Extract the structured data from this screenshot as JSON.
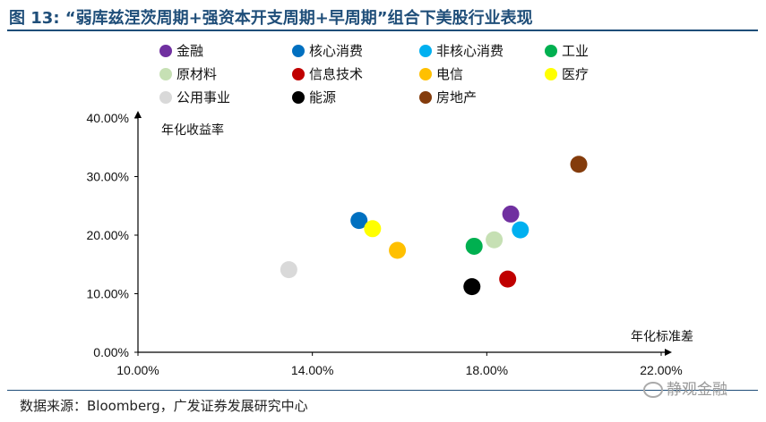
{
  "header": {
    "title": "图 13: “弱库兹涅茨周期+强资本开支周期+早周期”组合下美股行业表现"
  },
  "footer": {
    "source": "数据来源：Bloomberg，广发证券发展研究中心",
    "watermark": "静观金融"
  },
  "colors": {
    "title": "#1f4e79",
    "axis": "#000000"
  },
  "chart_data": {
    "type": "scatter",
    "title": "",
    "xlabel": "年化标准差",
    "ylabel": "年化收益率",
    "xlim": [
      0.1,
      0.22
    ],
    "ylim": [
      0.0,
      0.4
    ],
    "x_ticks": [
      "10.00%",
      "14.00%",
      "18.00%",
      "22.00%"
    ],
    "x_tick_values": [
      0.1,
      0.14,
      0.18,
      0.22
    ],
    "y_ticks": [
      "0.00%",
      "10.00%",
      "20.00%",
      "30.00%",
      "40.00%"
    ],
    "y_tick_values": [
      0.0,
      0.1,
      0.2,
      0.3,
      0.4
    ],
    "grid": false,
    "legend_position": "top",
    "series": [
      {
        "name": "金融",
        "color": "#7030a0",
        "x": 0.1855,
        "y": 0.236
      },
      {
        "name": "核心消费",
        "color": "#0070c0",
        "x": 0.1507,
        "y": 0.225
      },
      {
        "name": "非核心消费",
        "color": "#00b0f0",
        "x": 0.1877,
        "y": 0.209
      },
      {
        "name": "工业",
        "color": "#00b050",
        "x": 0.1771,
        "y": 0.181
      },
      {
        "name": "原材料",
        "color": "#c6e0b4",
        "x": 0.1817,
        "y": 0.192
      },
      {
        "name": "信息技术",
        "color": "#c00000",
        "x": 0.1848,
        "y": 0.125
      },
      {
        "name": "电信",
        "color": "#ffc000",
        "x": 0.1595,
        "y": 0.174
      },
      {
        "name": "医疗",
        "color": "#ffff00",
        "x": 0.1538,
        "y": 0.211
      },
      {
        "name": "公用事业",
        "color": "#d9d9d9",
        "x": 0.1346,
        "y": 0.141
      },
      {
        "name": "能源",
        "color": "#000000",
        "x": 0.1766,
        "y": 0.112
      },
      {
        "name": "房地产",
        "color": "#843c0c",
        "x": 0.2011,
        "y": 0.321
      }
    ]
  }
}
